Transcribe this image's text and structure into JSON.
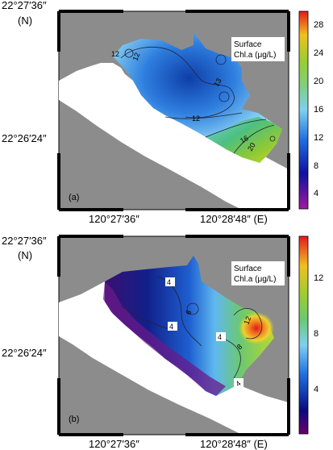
{
  "panels": [
    {
      "letter": "(a)",
      "legend_title_line1": "Surface",
      "legend_title_line2": "Chl.a (μg/L)",
      "colorbar_ticks": [
        "28",
        "24",
        "20",
        "16",
        "12",
        "8",
        "4"
      ],
      "contour_labels": [
        "12",
        "12",
        "13",
        "12",
        "16",
        "20"
      ],
      "lat_top": "22°27′36″",
      "lat_top_hemi": "(N)",
      "lat_mid": "22°26′24″",
      "lon_left": "120°27′36″",
      "lon_right": "120°28′48″ (E)"
    },
    {
      "letter": "(b)",
      "legend_title_line1": "Surface",
      "legend_title_line2": "Chl.a (μg/L)",
      "colorbar_ticks": [
        "12",
        "8",
        "4"
      ],
      "contour_labels": [
        "4",
        "6",
        "4",
        "4",
        "8",
        "12",
        "4"
      ],
      "lat_top": "22°27′36″",
      "lat_top_hemi": "(N)",
      "lat_mid": "22°26′24″",
      "lon_left": "120°27′36″",
      "lon_right": "120°28′48″ (E)"
    }
  ],
  "colors": {
    "land": "#8c8c8c",
    "sea": "#ffffff",
    "high": "#e31a1c",
    "mid": "#9acd32",
    "low": "#1f3fbf",
    "lowest": "#8b008b"
  }
}
